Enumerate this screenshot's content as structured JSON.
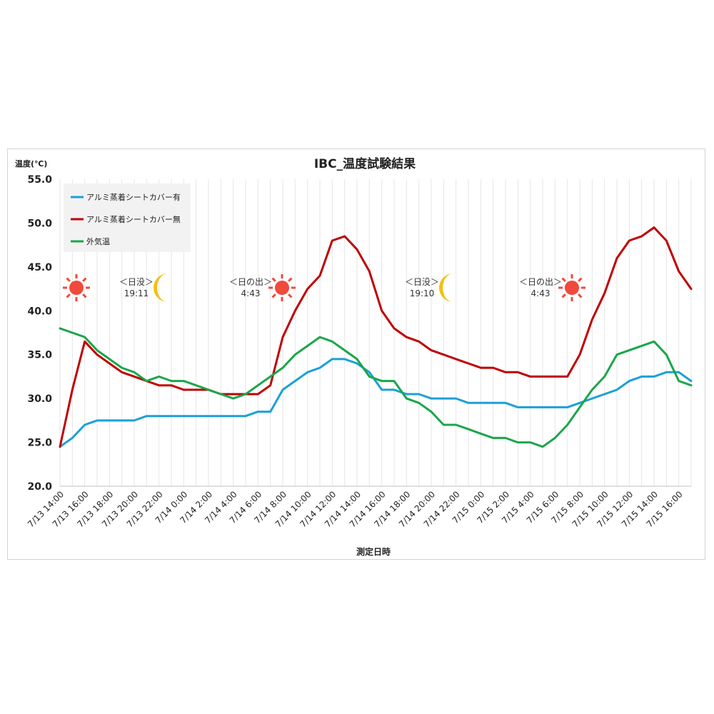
{
  "chart_data": {
    "type": "line",
    "title": "IBC_温度試験結果",
    "ylabel": "温度(℃)",
    "xlabel": "測定日時",
    "ylim": [
      20,
      55
    ],
    "yticks": [
      "20.0",
      "25.0",
      "30.0",
      "35.0",
      "40.0",
      "45.0",
      "50.0",
      "55.0"
    ],
    "grid": "vertical",
    "legend_position": "top-left",
    "categories": [
      "7/13 14:00",
      "7/13 15:00",
      "7/13 16:00",
      "7/13 17:00",
      "7/13 18:00",
      "7/13 19:00",
      "7/13 20:00",
      "7/13 21:00",
      "7/13 22:00",
      "7/13 23:00",
      "7/14 0:00",
      "7/14 1:00",
      "7/14 2:00",
      "7/14 3:00",
      "7/14 4:00",
      "7/14 5:00",
      "7/14 6:00",
      "7/14 7:00",
      "7/14 8:00",
      "7/14 9:00",
      "7/14 10:00",
      "7/14 11:00",
      "7/14 12:00",
      "7/14 13:00",
      "7/14 14:00",
      "7/14 15:00",
      "7/14 16:00",
      "7/14 17:00",
      "7/14 18:00",
      "7/14 19:00",
      "7/14 20:00",
      "7/14 21:00",
      "7/14 22:00",
      "7/14 23:00",
      "7/15 0:00",
      "7/15 1:00",
      "7/15 2:00",
      "7/15 3:00",
      "7/15 4:00",
      "7/15 5:00",
      "7/15 6:00",
      "7/15 7:00",
      "7/15 8:00",
      "7/15 9:00",
      "7/15 10:00",
      "7/15 11:00",
      "7/15 12:00",
      "7/15 13:00",
      "7/15 14:00",
      "7/15 15:00",
      "7/15 16:00",
      "7/15 17:00"
    ],
    "xtick_labels": [
      "7/13 14:00",
      "7/13 16:00",
      "7/13 18:00",
      "7/13 20:00",
      "7/13 22:00",
      "7/14 0:00",
      "7/14 2:00",
      "7/14 4:00",
      "7/14 6:00",
      "7/14 8:00",
      "7/14 10:00",
      "7/14 12:00",
      "7/14 14:00",
      "7/14 16:00",
      "7/14 18:00",
      "7/14 20:00",
      "7/14 22:00",
      "7/15 0:00",
      "7/15 2:00",
      "7/15 4:00",
      "7/15 6:00",
      "7/15 8:00",
      "7/15 10:00",
      "7/15 12:00",
      "7/15 14:00",
      "7/15 16:00"
    ],
    "series": [
      {
        "name": "アルミ蒸着シートカバー有",
        "color": "#1ca0d8",
        "values": [
          24.5,
          25.5,
          27,
          27.5,
          27.5,
          27.5,
          27.5,
          28,
          28,
          28,
          28,
          28,
          28,
          28,
          28,
          28,
          28.5,
          28.5,
          31,
          32,
          33,
          33.5,
          34.5,
          34.5,
          34,
          33,
          31,
          31,
          30.5,
          30.5,
          30,
          30,
          30,
          29.5,
          29.5,
          29.5,
          29.5,
          29,
          29,
          29,
          29,
          29,
          29.5,
          30,
          30.5,
          31,
          32,
          32.5,
          32.5,
          33,
          33,
          32
        ]
      },
      {
        "name": "アルミ蒸着シートカバー無",
        "color": "#c00000",
        "values": [
          24.5,
          31,
          36.5,
          35,
          34,
          33,
          32.5,
          32,
          31.5,
          31.5,
          31,
          31,
          31,
          30.5,
          30.5,
          30.5,
          30.5,
          31.5,
          37,
          40,
          42.5,
          44,
          48,
          48.5,
          47,
          44.5,
          40,
          38,
          37,
          36.5,
          35.5,
          35,
          34.5,
          34,
          33.5,
          33.5,
          33,
          33,
          32.5,
          32.5,
          32.5,
          32.5,
          35,
          39,
          42,
          46,
          48,
          48.5,
          49.5,
          48,
          44.5,
          42.5
        ]
      },
      {
        "name": "外気温",
        "color": "#1ba64a",
        "values": [
          38,
          37.5,
          37,
          35.5,
          34.5,
          33.5,
          33,
          32,
          32.5,
          32,
          32,
          31.5,
          31,
          30.5,
          30,
          30.5,
          31.5,
          32.5,
          33.5,
          35,
          36,
          37,
          36.5,
          35.5,
          34.5,
          32.5,
          32,
          32,
          30,
          29.5,
          28.5,
          27,
          27,
          26.5,
          26,
          25.5,
          25.5,
          25,
          25,
          24.5,
          25.5,
          27,
          29,
          31,
          32.5,
          35,
          35.5,
          36,
          36.5,
          35,
          32,
          31.5
        ]
      }
    ],
    "annotations": [
      {
        "icon": "sun-icon",
        "label": "",
        "time": ""
      },
      {
        "icon": "moon-icon",
        "label": "＜日没＞",
        "time": "19:11"
      },
      {
        "icon": "sun-icon",
        "label": "＜日の出＞",
        "time": "4:43"
      },
      {
        "icon": "moon-icon",
        "label": "＜日没＞",
        "time": "19:10"
      },
      {
        "icon": "sun-icon",
        "label": "＜日の出＞",
        "time": "4:43"
      }
    ]
  }
}
